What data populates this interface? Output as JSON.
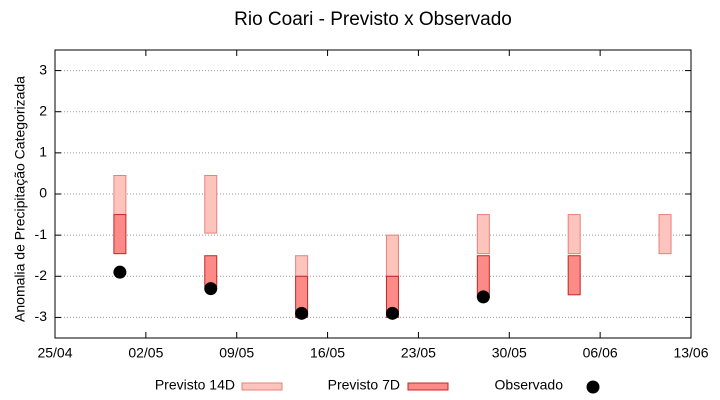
{
  "chart_data": {
    "type": "range-box",
    "title": "Rio Coari - Previsto x Observado",
    "y_label": "Anomalia de Precipitação Categorizada",
    "x": [
      "30/04",
      "07/05",
      "14/05",
      "21/05",
      "28/05",
      "04/06",
      "11/06"
    ],
    "xlim": [
      "25/04",
      "13/06"
    ],
    "xticks": [
      "25/04",
      "02/05",
      "09/05",
      "16/05",
      "23/05",
      "30/05",
      "06/06",
      "13/06"
    ],
    "ylim": [
      -3.5,
      3.5
    ],
    "yticks": [
      -3,
      -2,
      -1,
      0,
      1,
      2,
      3
    ],
    "grid": true,
    "legend": "bottom",
    "series": [
      {
        "name": "Previsto 14D",
        "color": "#fcc4bc",
        "stroke": "#e8807a",
        "low": [
          -0.55,
          -0.95,
          -2.0,
          -2.0,
          -1.45,
          -1.45,
          -1.45
        ],
        "high": [
          0.45,
          0.45,
          -1.5,
          -1.0,
          -0.5,
          -0.5,
          -0.5
        ]
      },
      {
        "name": "Previsto 7D",
        "color": "#fc8a86",
        "stroke": "#c0282a",
        "low": [
          -1.45,
          -2.25,
          -3.0,
          -3.0,
          -2.5,
          -2.45,
          null
        ],
        "high": [
          -0.5,
          -1.5,
          -2.0,
          -2.0,
          -1.5,
          -1.5,
          null
        ]
      },
      {
        "name": "Observado",
        "color": "#000000",
        "marker": "circle",
        "values": [
          -1.9,
          -2.3,
          -2.9,
          -2.9,
          -2.5,
          null,
          null
        ]
      }
    ]
  }
}
